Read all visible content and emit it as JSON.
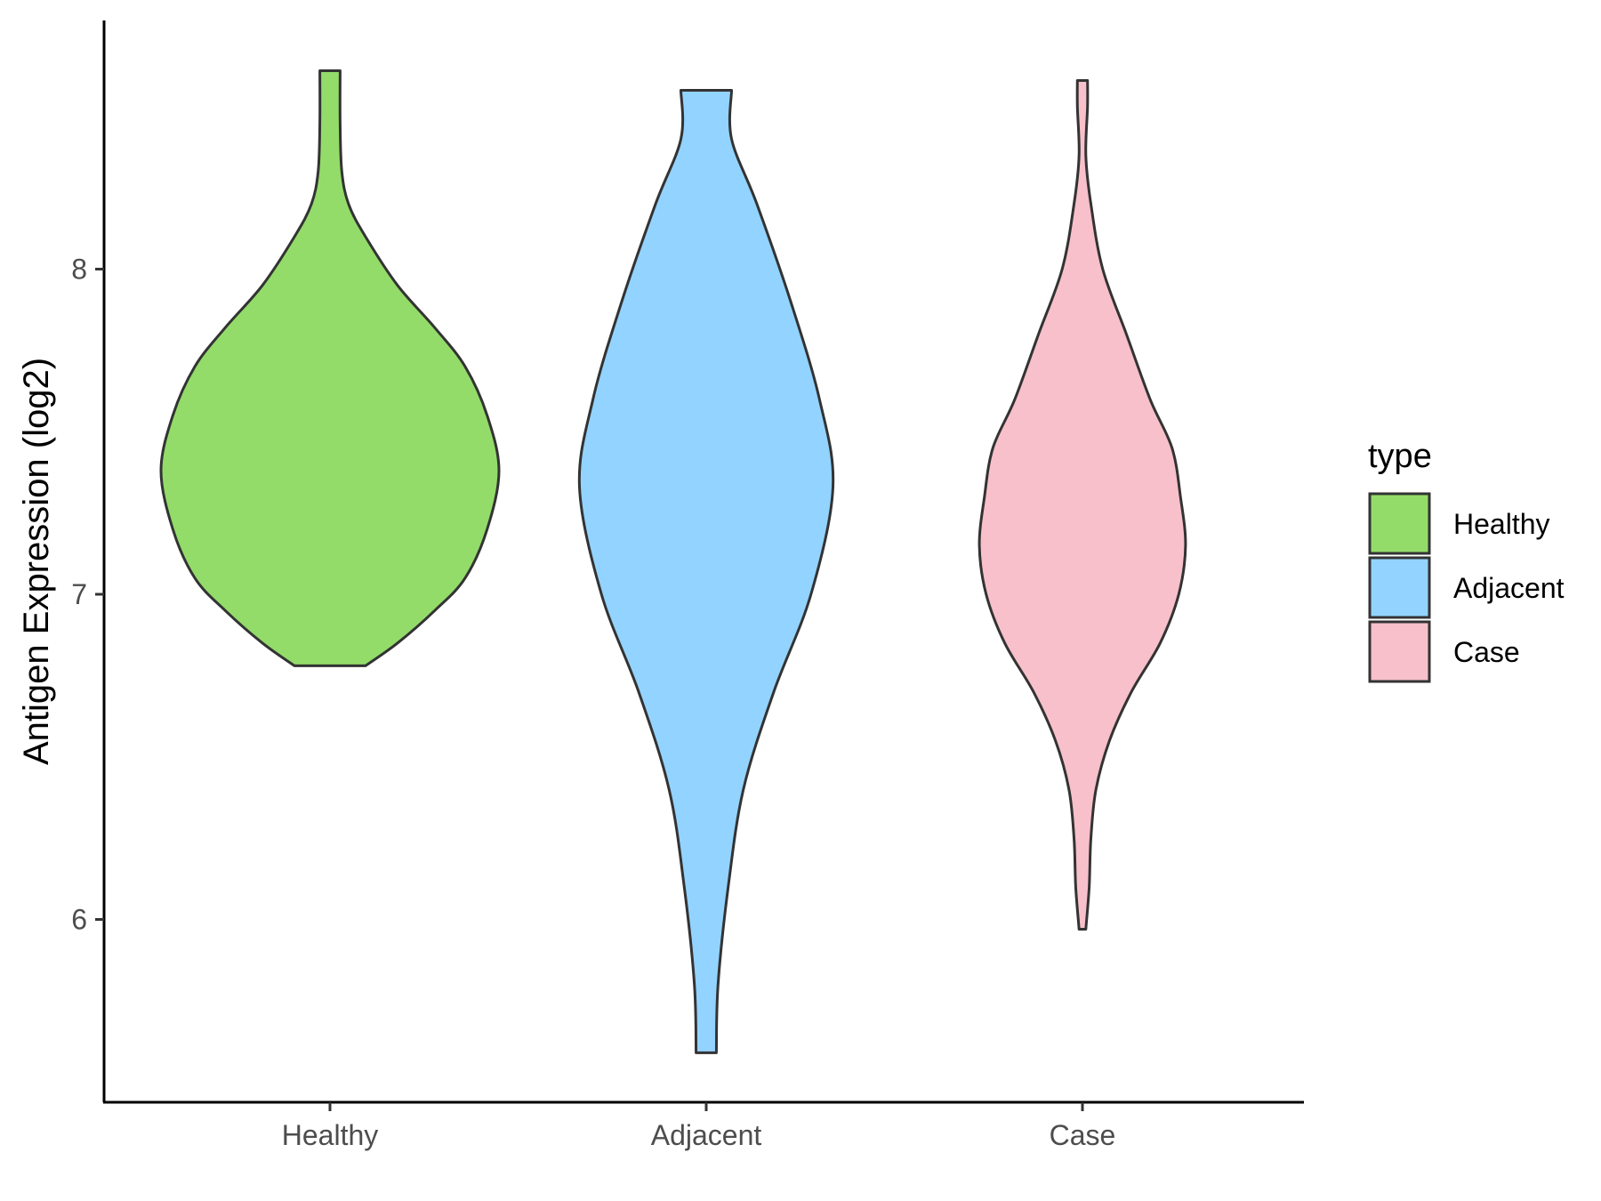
{
  "chart_data": {
    "type": "violin",
    "title": "",
    "xlabel": "",
    "ylabel": "Antigen Expression (log2)",
    "categories": [
      "Healthy",
      "Adjacent",
      "Case"
    ],
    "y_ticks": [
      6,
      7,
      8
    ],
    "y_tick_labels": [
      "6",
      "7",
      "8"
    ],
    "ylim": [
      5.45,
      8.77
    ],
    "grid": false,
    "legend": {
      "title": "type",
      "position": "right",
      "entries": [
        "Healthy",
        "Adjacent",
        "Case"
      ]
    },
    "colors": {
      "Healthy": "#93DC6A",
      "Adjacent": "#93D3FF",
      "Case": "#F7C0CB",
      "outline": "#333333"
    },
    "series": [
      {
        "name": "Healthy",
        "min": 6.78,
        "max": 8.61,
        "density": [
          [
            6.78,
            0.21
          ],
          [
            6.85,
            0.4
          ],
          [
            6.95,
            0.62
          ],
          [
            7.05,
            0.8
          ],
          [
            7.2,
            0.93
          ],
          [
            7.38,
            1.0
          ],
          [
            7.55,
            0.93
          ],
          [
            7.7,
            0.8
          ],
          [
            7.82,
            0.62
          ],
          [
            7.95,
            0.4
          ],
          [
            8.1,
            0.21
          ],
          [
            8.2,
            0.11
          ],
          [
            8.3,
            0.07
          ],
          [
            8.45,
            0.06
          ],
          [
            8.61,
            0.06
          ]
        ]
      },
      {
        "name": "Adjacent",
        "min": 5.59,
        "max": 8.55,
        "density": [
          [
            5.59,
            0.06
          ],
          [
            5.8,
            0.07
          ],
          [
            6.1,
            0.13
          ],
          [
            6.4,
            0.22
          ],
          [
            6.7,
            0.4
          ],
          [
            7.0,
            0.62
          ],
          [
            7.33,
            0.75
          ],
          [
            7.6,
            0.67
          ],
          [
            7.9,
            0.5
          ],
          [
            8.2,
            0.3
          ],
          [
            8.4,
            0.15
          ],
          [
            8.55,
            0.15
          ]
        ]
      },
      {
        "name": "Case",
        "min": 5.97,
        "max": 8.58,
        "density": [
          [
            5.97,
            0.02
          ],
          [
            6.1,
            0.04
          ],
          [
            6.25,
            0.05
          ],
          [
            6.4,
            0.08
          ],
          [
            6.55,
            0.16
          ],
          [
            6.7,
            0.29
          ],
          [
            6.85,
            0.46
          ],
          [
            7.0,
            0.57
          ],
          [
            7.15,
            0.61
          ],
          [
            7.3,
            0.58
          ],
          [
            7.45,
            0.53
          ],
          [
            7.6,
            0.4
          ],
          [
            7.8,
            0.26
          ],
          [
            8.0,
            0.12
          ],
          [
            8.2,
            0.05
          ],
          [
            8.35,
            0.02
          ],
          [
            8.5,
            0.03
          ],
          [
            8.58,
            0.03
          ]
        ]
      }
    ]
  }
}
